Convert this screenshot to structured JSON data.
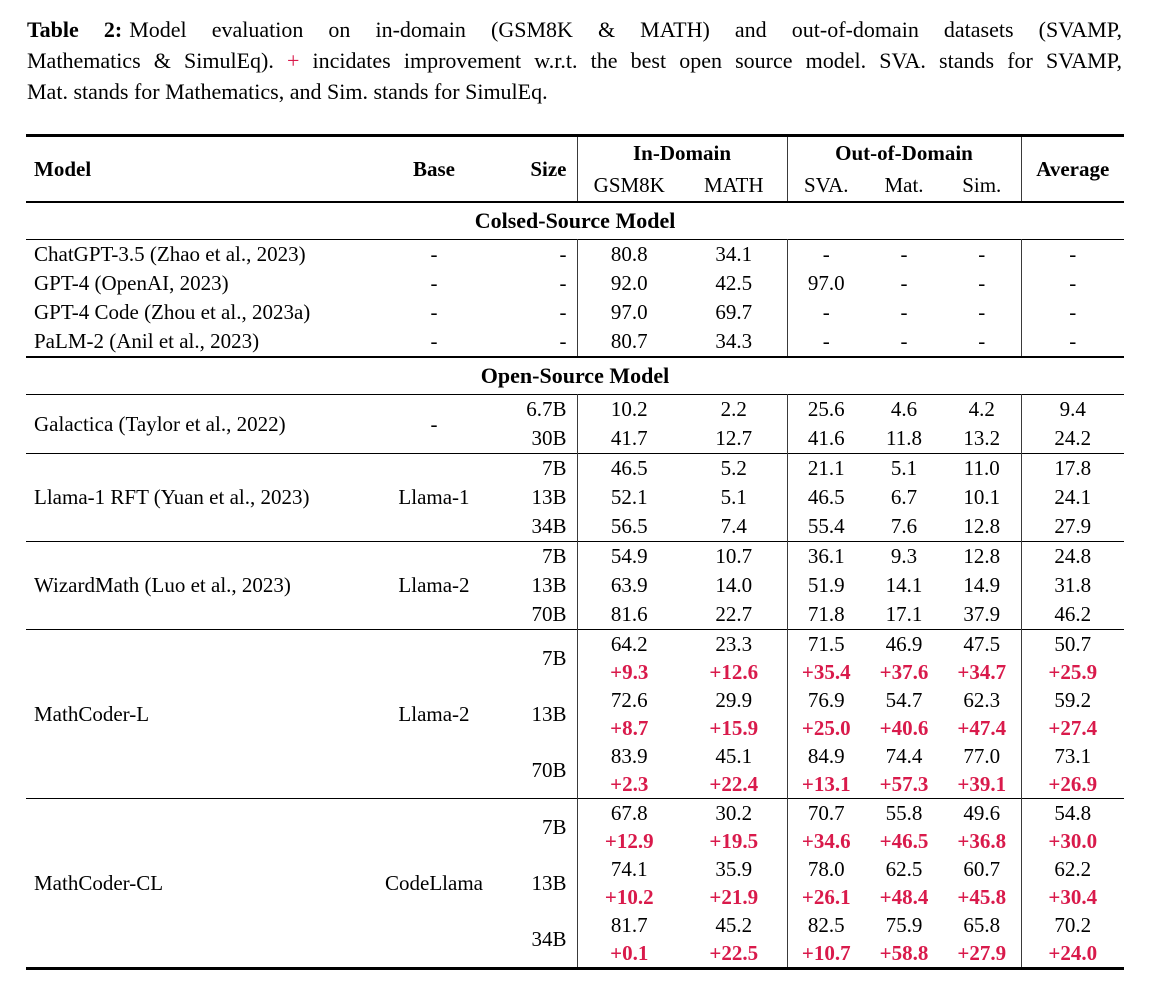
{
  "colors": {
    "accent_red": "#d91a4b",
    "text": "#000000",
    "background": "#ffffff"
  },
  "caption": {
    "label": "Table 2:",
    "line1_rest": "Model evaluation on in-domain (GSM8K & MATH) and out-of-domain datasets (SVAMP,",
    "line2_before": "Mathematics & SimulEq).",
    "plus": "+",
    "line2_after": "incidates improvement w.r.t. the best open source model. SVA. stands for SVAMP,",
    "line3": "Mat. stands for Mathematics, and Sim. stands for SimulEq."
  },
  "table": {
    "header": {
      "model": "Model",
      "base": "Base",
      "size": "Size",
      "in_domain": "In-Domain",
      "out_of_domain": "Out-of-Domain",
      "average": "Average",
      "subcols": [
        "GSM8K",
        "MATH",
        "SVA.",
        "Mat.",
        "Sim."
      ]
    },
    "sections": [
      {
        "title": "Colsed-Source Model",
        "rules_between_groups": false,
        "groups": [
          {
            "model": "ChatGPT-3.5 (Zhao et al., 2023)",
            "base": "-",
            "rows": [
              {
                "size": "-",
                "values": [
                  "80.8",
                  "34.1",
                  "-",
                  "-",
                  "-",
                  "-"
                ]
              }
            ]
          },
          {
            "model": "GPT-4 (OpenAI, 2023)",
            "base": "-",
            "rows": [
              {
                "size": "-",
                "values": [
                  "92.0",
                  "42.5",
                  "97.0",
                  "-",
                  "-",
                  "-"
                ]
              }
            ]
          },
          {
            "model": "GPT-4 Code (Zhou et al., 2023a)",
            "base": "-",
            "rows": [
              {
                "size": "-",
                "values": [
                  "97.0",
                  "69.7",
                  "-",
                  "-",
                  "-",
                  "-"
                ]
              }
            ]
          },
          {
            "model": "PaLM-2 (Anil et al., 2023)",
            "base": "-",
            "rows": [
              {
                "size": "-",
                "values": [
                  "80.7",
                  "34.3",
                  "-",
                  "-",
                  "-",
                  "-"
                ]
              }
            ]
          }
        ]
      },
      {
        "title": "Open-Source Model",
        "rules_between_groups": true,
        "groups": [
          {
            "model": "Galactica (Taylor et al., 2022)",
            "base": "-",
            "rows": [
              {
                "size": "6.7B",
                "values": [
                  "10.2",
                  "2.2",
                  "25.6",
                  "4.6",
                  "4.2",
                  "9.4"
                ]
              },
              {
                "size": "30B",
                "values": [
                  "41.7",
                  "12.7",
                  "41.6",
                  "11.8",
                  "13.2",
                  "24.2"
                ]
              }
            ]
          },
          {
            "model": "Llama-1 RFT (Yuan et al., 2023)",
            "base": "Llama-1",
            "rows": [
              {
                "size": "7B",
                "values": [
                  "46.5",
                  "5.2",
                  "21.1",
                  "5.1",
                  "11.0",
                  "17.8"
                ]
              },
              {
                "size": "13B",
                "values": [
                  "52.1",
                  "5.1",
                  "46.5",
                  "6.7",
                  "10.1",
                  "24.1"
                ]
              },
              {
                "size": "34B",
                "values": [
                  "56.5",
                  "7.4",
                  "55.4",
                  "7.6",
                  "12.8",
                  "27.9"
                ]
              }
            ]
          },
          {
            "model": "WizardMath (Luo et al., 2023)",
            "base": "Llama-2",
            "rows": [
              {
                "size": "7B",
                "values": [
                  "54.9",
                  "10.7",
                  "36.1",
                  "9.3",
                  "12.8",
                  "24.8"
                ]
              },
              {
                "size": "13B",
                "values": [
                  "63.9",
                  "14.0",
                  "51.9",
                  "14.1",
                  "14.9",
                  "31.8"
                ]
              },
              {
                "size": "70B",
                "values": [
                  "81.6",
                  "22.7",
                  "71.8",
                  "17.1",
                  "37.9",
                  "46.2"
                ]
              }
            ]
          },
          {
            "model": "MathCoder-L",
            "base": "Llama-2",
            "rows": [
              {
                "size": "7B",
                "values": [
                  "64.2",
                  "23.3",
                  "71.5",
                  "46.9",
                  "47.5",
                  "50.7"
                ],
                "deltas": [
                  "+9.3",
                  "+12.6",
                  "+35.4",
                  "+37.6",
                  "+34.7",
                  "+25.9"
                ]
              },
              {
                "size": "13B",
                "values": [
                  "72.6",
                  "29.9",
                  "76.9",
                  "54.7",
                  "62.3",
                  "59.2"
                ],
                "deltas": [
                  "+8.7",
                  "+15.9",
                  "+25.0",
                  "+40.6",
                  "+47.4",
                  "+27.4"
                ]
              },
              {
                "size": "70B",
                "values": [
                  "83.9",
                  "45.1",
                  "84.9",
                  "74.4",
                  "77.0",
                  "73.1"
                ],
                "deltas": [
                  "+2.3",
                  "+22.4",
                  "+13.1",
                  "+57.3",
                  "+39.1",
                  "+26.9"
                ]
              }
            ]
          },
          {
            "model": "MathCoder-CL",
            "base": "CodeLlama",
            "rows": [
              {
                "size": "7B",
                "values": [
                  "67.8",
                  "30.2",
                  "70.7",
                  "55.8",
                  "49.6",
                  "54.8"
                ],
                "deltas": [
                  "+12.9",
                  "+19.5",
                  "+34.6",
                  "+46.5",
                  "+36.8",
                  "+30.0"
                ]
              },
              {
                "size": "13B",
                "values": [
                  "74.1",
                  "35.9",
                  "78.0",
                  "62.5",
                  "60.7",
                  "62.2"
                ],
                "deltas": [
                  "+10.2",
                  "+21.9",
                  "+26.1",
                  "+48.4",
                  "+45.8",
                  "+30.4"
                ]
              },
              {
                "size": "34B",
                "values": [
                  "81.7",
                  "45.2",
                  "82.5",
                  "75.9",
                  "65.8",
                  "70.2"
                ],
                "deltas": [
                  "+0.1",
                  "+22.5",
                  "+10.7",
                  "+58.8",
                  "+27.9",
                  "+24.0"
                ]
              }
            ]
          }
        ]
      }
    ]
  }
}
